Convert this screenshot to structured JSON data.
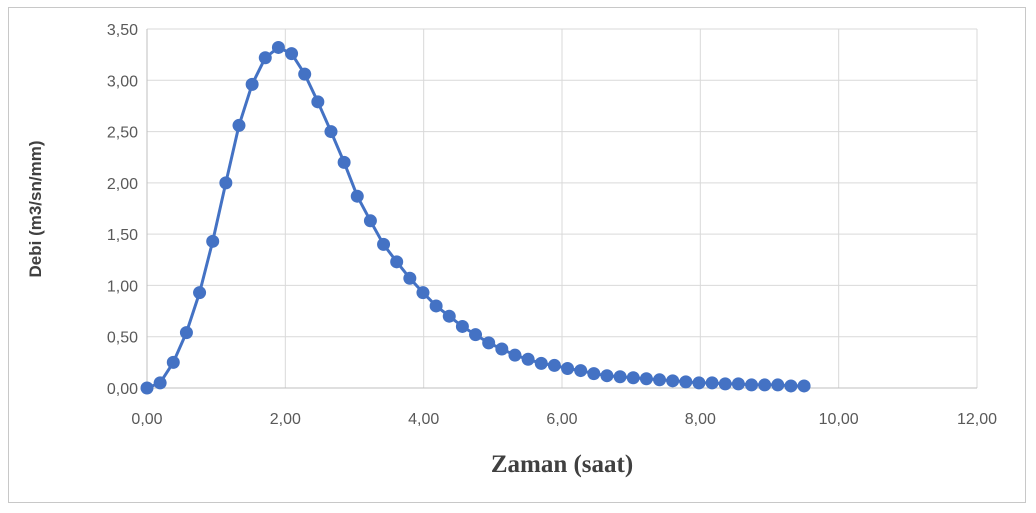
{
  "chart_data": {
    "type": "line",
    "xlabel": "Zaman (saat)",
    "ylabel": "Debi (m3/sn/mm)",
    "xlim": [
      0,
      12
    ],
    "ylim": [
      0,
      3.5
    ],
    "xticks": [
      "0,00",
      "2,00",
      "4,00",
      "6,00",
      "8,00",
      "10,00",
      "12,00"
    ],
    "yticks": [
      "0,00",
      "0,50",
      "1,00",
      "1,50",
      "2,00",
      "2,50",
      "3,00",
      "3,50"
    ],
    "grid": true,
    "legend": "none",
    "line_color": "#4472c4",
    "marker": "circle",
    "series": [
      {
        "x": [
          0.0,
          0.19,
          0.38,
          0.57,
          0.76,
          0.95,
          1.14,
          1.33,
          1.52,
          1.71,
          1.9,
          2.09,
          2.28,
          2.47,
          2.66,
          2.85,
          3.04,
          3.23,
          3.42,
          3.61,
          3.8,
          3.99,
          4.18,
          4.37,
          4.56,
          4.75,
          4.94,
          5.13,
          5.32,
          5.51,
          5.7,
          5.89,
          6.08,
          6.27,
          6.46,
          6.65,
          6.84,
          7.03,
          7.22,
          7.41,
          7.6,
          7.79,
          7.98,
          8.17,
          8.36,
          8.55,
          8.74,
          8.93,
          9.12,
          9.31,
          9.5
        ],
        "values": [
          0.0,
          0.05,
          0.25,
          0.54,
          0.93,
          1.43,
          2.0,
          2.56,
          2.96,
          3.22,
          3.32,
          3.26,
          3.06,
          2.79,
          2.5,
          2.2,
          1.87,
          1.63,
          1.4,
          1.23,
          1.07,
          0.93,
          0.8,
          0.7,
          0.6,
          0.52,
          0.44,
          0.38,
          0.32,
          0.28,
          0.24,
          0.22,
          0.19,
          0.17,
          0.14,
          0.12,
          0.11,
          0.1,
          0.09,
          0.08,
          0.07,
          0.06,
          0.05,
          0.05,
          0.04,
          0.04,
          0.03,
          0.03,
          0.03,
          0.02,
          0.02
        ]
      }
    ]
  }
}
